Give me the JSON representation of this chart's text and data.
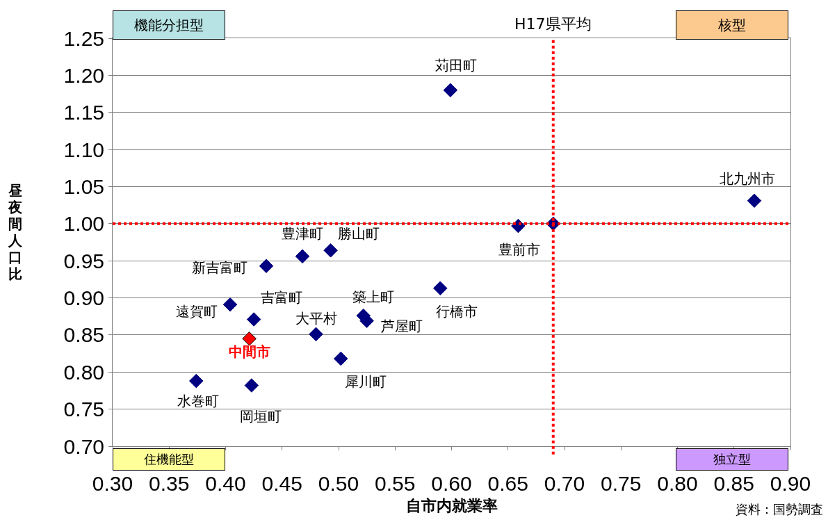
{
  "chart_data": {
    "type": "scatter",
    "xlabel": "自市内就業率",
    "ylabel": "昼夜間人口比",
    "series": [
      {
        "color": "#000080",
        "x": [
          0.599,
          0.868,
          0.659,
          0.69,
          0.468,
          0.493,
          0.436,
          0.59,
          0.404,
          0.425,
          0.522,
          0.525,
          0.48,
          0.502,
          0.374,
          0.423
        ],
        "values": [
          1.18,
          1.031,
          0.997,
          1.0,
          0.956,
          0.964,
          0.943,
          0.913,
          0.891,
          0.871,
          0.876,
          0.869,
          0.851,
          0.818,
          0.788,
          0.782
        ]
      },
      {
        "name": "中間市",
        "color": "#ff0000",
        "x": [
          0.421
        ],
        "values": [
          0.845
        ]
      }
    ],
    "annotations": [
      "機能分担型",
      "核型",
      "住機能型",
      "独立型",
      {
        "text": "苅田町",
        "x": 0.599,
        "y": 1.18
      },
      {
        "text": "北九州市",
        "x": 0.868,
        "y": 1.031
      },
      {
        "text": "豊前市",
        "x": 0.659,
        "y": 0.997
      },
      {
        "text": "豊津町",
        "x": 0.468,
        "y": 0.956
      },
      {
        "text": "勝山町",
        "x": 0.493,
        "y": 0.964
      },
      {
        "text": "新吉富町",
        "x": 0.436,
        "y": 0.943
      },
      {
        "text": "行橋市",
        "x": 0.59,
        "y": 0.913
      },
      {
        "text": "遠賀町",
        "x": 0.404,
        "y": 0.891
      },
      {
        "text": "吉富町",
        "x": 0.425,
        "y": 0.871
      },
      {
        "text": "築上町",
        "x": 0.522,
        "y": 0.876
      },
      {
        "text": "芦屋町",
        "x": 0.525,
        "y": 0.869
      },
      {
        "text": "大平村",
        "x": 0.48,
        "y": 0.851
      },
      {
        "text": "犀川町",
        "x": 0.502,
        "y": 0.818
      },
      {
        "text": "水巻町",
        "x": 0.374,
        "y": 0.788
      },
      {
        "text": "岡垣町",
        "x": 0.423,
        "y": 0.782
      },
      "資料：国勢調査"
    ],
    "ref_lines": [
      {
        "axis": "x",
        "value": 0.69,
        "label": "H17県平均",
        "color": "#ff0000",
        "line_style": "dotted"
      },
      {
        "axis": "y",
        "value": 1.0,
        "label": null,
        "color": "#ff0000",
        "line_style": "dotted"
      }
    ],
    "marker": "diamond",
    "grid": "y",
    "legend": false,
    "xlim": [
      0.3,
      0.9
    ],
    "xticks": [
      {
        "value": 0.3,
        "label": "0.30"
      },
      {
        "value": 0.35,
        "label": "0.35"
      },
      {
        "value": 0.4,
        "label": "0.40"
      },
      {
        "value": 0.45,
        "label": "0.45"
      },
      {
        "value": 0.5,
        "label": "0.50"
      },
      {
        "value": 0.55,
        "label": "0.55"
      },
      {
        "value": 0.6,
        "label": "0.60"
      },
      {
        "value": 0.65,
        "label": "0.65"
      },
      {
        "value": 0.7,
        "label": "0.70"
      },
      {
        "value": 0.75,
        "label": "0.75"
      },
      {
        "value": 0.8,
        "label": "0.80"
      },
      {
        "value": 0.85,
        "label": "0.85"
      },
      {
        "value": 0.9,
        "label": "0.90"
      }
    ],
    "ylim": [
      0.7,
      1.25
    ],
    "yticks": [
      {
        "value": 0.7,
        "label": "0.70"
      },
      {
        "value": 0.75,
        "label": "0.75"
      },
      {
        "value": 0.8,
        "label": "0.80"
      },
      {
        "value": 0.85,
        "label": "0.85"
      },
      {
        "value": 0.9,
        "label": "0.90"
      },
      {
        "value": 0.95,
        "label": "0.95"
      },
      {
        "value": 1.0,
        "label": "1.00"
      },
      {
        "value": 1.05,
        "label": "1.05"
      },
      {
        "value": 1.1,
        "label": "1.10"
      },
      {
        "value": 1.15,
        "label": "1.15"
      },
      {
        "value": 1.2,
        "label": "1.20"
      },
      {
        "value": 1.25,
        "label": "1.25"
      }
    ]
  }
}
